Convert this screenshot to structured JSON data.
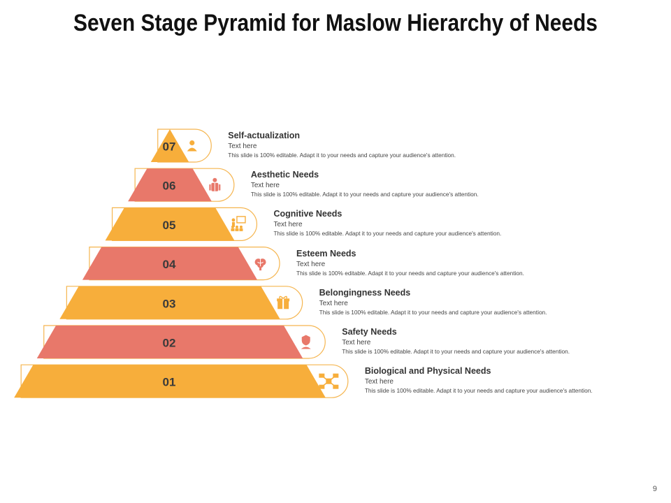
{
  "title": "Seven Stage Pyramid for Maslow Hierarchy of Needs",
  "page_number": "9",
  "colors": {
    "orange": "#F7AE3B",
    "salmon": "#E8786A",
    "outline": "#F5B54F"
  },
  "levels": [
    {
      "number": "07",
      "heading": "Self-actualization",
      "subtitle": "Text here",
      "description": "This slide is 100% editable. Adapt it to your needs and capture your audience's attention.",
      "icon": "person-icon",
      "color": "orange"
    },
    {
      "number": "06",
      "heading": "Aesthetic Needs",
      "subtitle": "Text here",
      "description": "This slide is 100% editable. Adapt it to your needs and capture your audience's attention.",
      "icon": "businessman-icon",
      "color": "salmon"
    },
    {
      "number": "05",
      "heading": "Cognitive Needs",
      "subtitle": "Text here",
      "description": "This slide is 100% editable. Adapt it to your needs and capture your audience's attention.",
      "icon": "presentation-icon",
      "color": "orange"
    },
    {
      "number": "04",
      "heading": "Esteem Needs",
      "subtitle": "Text here",
      "description": "This slide is 100% editable. Adapt it to your needs and capture your audience's attention.",
      "icon": "brain-icon",
      "color": "salmon"
    },
    {
      "number": "03",
      "heading": "Belongingness Needs",
      "subtitle": "Text here",
      "description": "This slide is 100% editable. Adapt it to your needs and capture your audience's attention.",
      "icon": "gift-box-icon",
      "color": "orange"
    },
    {
      "number": "02",
      "heading": "Safety Needs",
      "subtitle": "Text here",
      "description": "This slide is 100% editable. Adapt it to your needs and capture your audience's attention.",
      "icon": "shield-hand-icon",
      "color": "salmon"
    },
    {
      "number": "01",
      "heading": "Biological and Physical Needs",
      "subtitle": "Text here",
      "description": "This slide is 100% editable. Adapt it to your needs and capture your audience's attention.",
      "icon": "network-icon",
      "color": "orange"
    }
  ]
}
